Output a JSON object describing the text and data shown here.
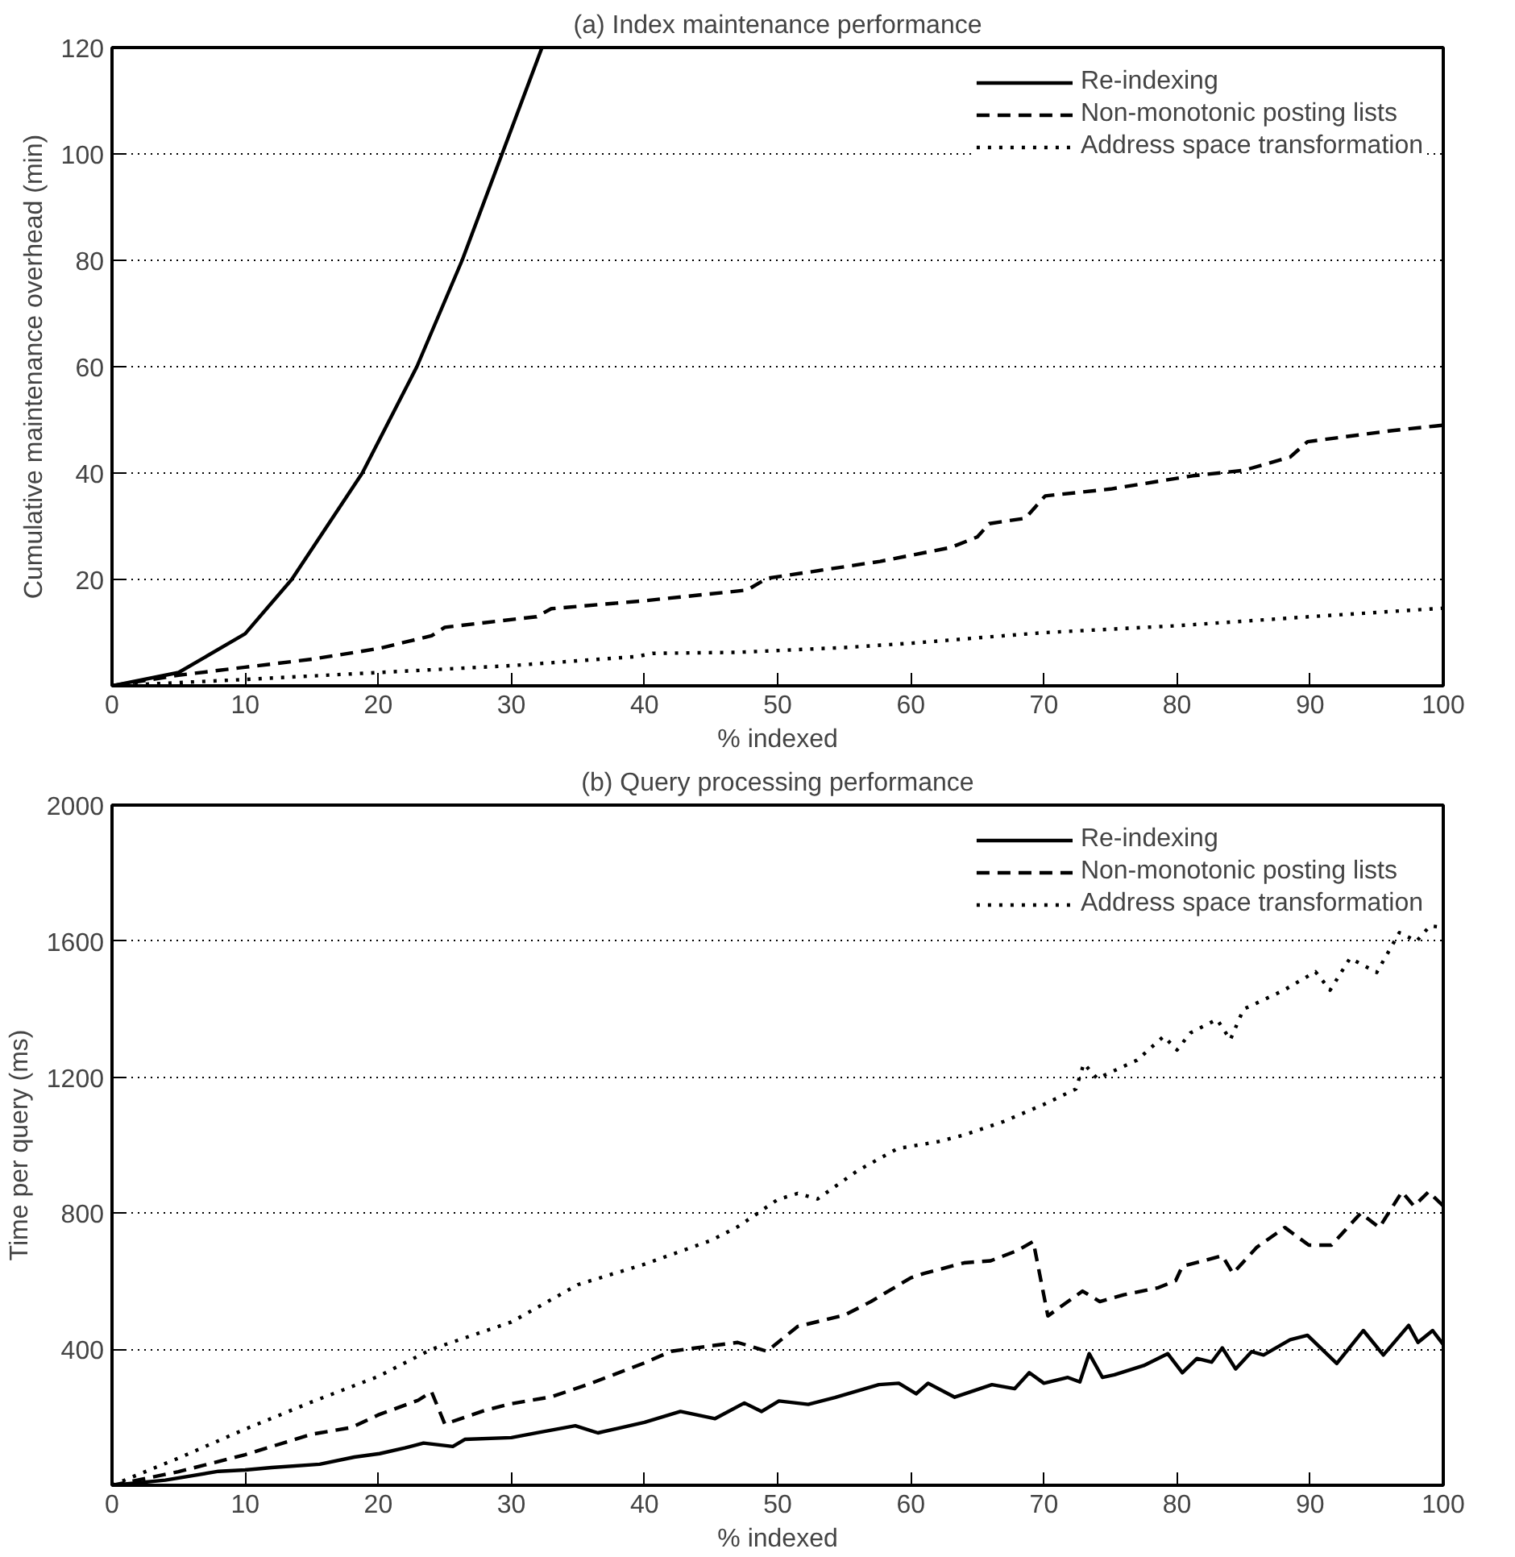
{
  "chart_data": [
    {
      "type": "line",
      "title": "(a) Index maintenance performance",
      "xlabel": "% indexed",
      "ylabel": "Cumulative maintenance overhead (min)",
      "xlim": [
        0,
        100
      ],
      "xticks": [
        0,
        10,
        20,
        30,
        40,
        50,
        60,
        70,
        80,
        90,
        100
      ],
      "ylim": [
        0,
        120
      ],
      "yticks": [
        20,
        40,
        60,
        80,
        100,
        120
      ],
      "grid": "y",
      "legend": "top right",
      "series": [
        {
          "name": "Re-indexing",
          "color": "#000000",
          "line_style": "solid",
          "x": [
            0,
            5,
            10,
            13.5,
            18.8,
            22.9,
            26.3,
            29.3,
            32.3
          ],
          "values": [
            0,
            2.5,
            9.8,
            20,
            40,
            60,
            80,
            100,
            120
          ]
        },
        {
          "name": "Non-monotonic posting lists",
          "color": "#000000",
          "line_style": "dashed",
          "x": [
            0,
            5,
            10,
            15,
            20,
            24,
            25,
            31.9,
            33,
            40,
            47.7,
            49.2,
            57.7,
            63,
            65,
            65.9,
            68.6,
            70.1,
            75,
            81.2,
            85,
            88.5,
            89.8,
            96.2,
            100
          ],
          "values": [
            0,
            2,
            3.5,
            5,
            7,
            9.4,
            11,
            13,
            14.5,
            16,
            18,
            20.2,
            23.4,
            26,
            28,
            30.5,
            31.5,
            35.7,
            37,
            39.5,
            40.5,
            43,
            45.9,
            48,
            49
          ]
        },
        {
          "name": "Address space transformation",
          "color": "#000000",
          "line_style": "dotted",
          "x": [
            0,
            10,
            19.2,
            30,
            39.4,
            40.6,
            47,
            55,
            60,
            65.9,
            70,
            80,
            90,
            100
          ],
          "values": [
            0,
            1.2,
            2.4,
            3.8,
            5.5,
            6.1,
            6.3,
            7.2,
            8,
            9.2,
            10,
            11.3,
            13,
            14.6
          ]
        }
      ]
    },
    {
      "type": "line",
      "title": "(b) Query processing performance",
      "xlabel": "% indexed",
      "ylabel": "Time per query (ms)",
      "xlim": [
        0,
        100
      ],
      "xticks": [
        0,
        10,
        20,
        30,
        40,
        50,
        60,
        70,
        80,
        90,
        100
      ],
      "ylim": [
        0,
        2000
      ],
      "yticks": [
        400,
        800,
        1200,
        1600,
        2000
      ],
      "grid": "y",
      "legend": "top right",
      "series": [
        {
          "name": "Re-indexing",
          "color": "#000000",
          "line_style": "solid",
          "x": [
            0,
            4,
            8,
            10,
            12,
            15.6,
            18.2,
            20.1,
            22,
            23.4,
            25.6,
            26.5,
            30,
            32,
            34.8,
            36.5,
            40,
            42.7,
            45.3,
            47.5,
            48.8,
            50.1,
            52.3,
            54.3,
            57.6,
            59.1,
            60.4,
            61.3,
            63.3,
            66.1,
            67.8,
            68.9,
            70,
            71.8,
            72.7,
            73.4,
            74.4,
            75.3,
            77.5,
            79.3,
            80.4,
            81.5,
            82.6,
            83.4,
            84.4,
            85.6,
            86.5,
            88.5,
            89.8,
            92,
            94,
            95.5,
            97.4,
            98.1,
            99.2,
            100
          ],
          "values": [
            0,
            15,
            41,
            45,
            52,
            62,
            83,
            93,
            110,
            124,
            114,
            135,
            140,
            155,
            175,
            154,
            185,
            217,
            196,
            242,
            217,
            248,
            238,
            258,
            296,
            300,
            269,
            300,
            259,
            296,
            284,
            331,
            300,
            317,
            304,
            387,
            317,
            325,
            352,
            387,
            331,
            373,
            362,
            404,
            342,
            393,
            383,
            428,
            441,
            358,
            455,
            383,
            470,
            420,
            455,
            414
          ]
        },
        {
          "name": "Non-monotonic posting lists",
          "color": "#000000",
          "line_style": "dashed",
          "x": [
            0,
            5,
            10,
            15,
            18,
            20,
            23,
            24,
            25,
            28,
            30,
            33,
            36,
            40,
            42,
            45,
            47,
            49.2,
            51.5,
            55,
            57,
            60,
            61,
            64,
            66,
            68,
            69.2,
            70.3,
            72.9,
            74.2,
            76,
            78.6,
            79.9,
            80.4,
            82,
            83.4,
            84.2,
            86,
            88.1,
            89.9,
            91.6,
            93.8,
            95.2,
            96.9,
            97.8,
            98.9,
            100
          ],
          "values": [
            0,
            40,
            90,
            150,
            170,
            207,
            250,
            275,
            180,
            220,
            240,
            260,
            300,
            360,
            394,
            410,
            420,
            394,
            467,
            500,
            540,
            610,
            623,
            654,
            660,
            690,
            717,
            498,
            571,
            540,
            560,
            581,
            602,
            644,
            660,
            675,
            623,
            700,
            758,
            706,
            706,
            800,
            758,
            863,
            821,
            863,
            821
          ]
        },
        {
          "name": "Address space transformation",
          "color": "#000000",
          "line_style": "dotted",
          "x": [
            0,
            5,
            10,
            15,
            20,
            24,
            30,
            35,
            40,
            45,
            47,
            50,
            51.5,
            53,
            56,
            59,
            62,
            64,
            67,
            70,
            72.4,
            73,
            74,
            77,
            79,
            80,
            81,
            83,
            84,
            85,
            88,
            90.4,
            91.5,
            93,
            95,
            96.7,
            98,
            99,
            100
          ],
          "values": [
            0,
            80,
            165,
            245,
            320,
            400,
            480,
            590,
            650,
            720,
            760,
            840,
            858,
            842,
            925,
            990,
            1010,
            1030,
            1070,
            1120,
            1165,
            1240,
            1196,
            1250,
            1320,
            1280,
            1330,
            1370,
            1310,
            1400,
            1455,
            1510,
            1456,
            1550,
            1508,
            1625,
            1600,
            1645,
            1640
          ]
        }
      ]
    }
  ]
}
